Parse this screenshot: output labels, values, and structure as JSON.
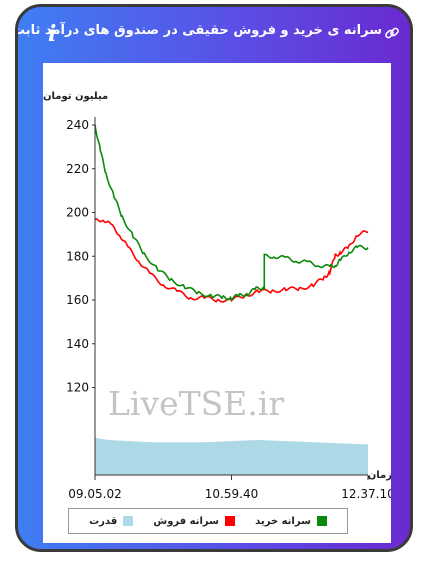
{
  "header": {
    "title": "سرانه ی خرید و فروش حقیقی در صندوق های درآمد ثابت",
    "link_icon": "link-icon",
    "info_icon_glyph": "i"
  },
  "watermark": "LiveTSE.ir",
  "colors": {
    "buy": "#0a8a0a",
    "sell": "#ff0000",
    "power": "#add8e6"
  },
  "chart_data": {
    "type": "line",
    "ylabel": "میلیون تومان",
    "xlabel": "زمان",
    "ylim": [
      80,
      240
    ],
    "y_ticks": [
      120,
      140,
      160,
      180,
      200,
      220,
      240
    ],
    "x_ticks": [
      "09.05.02",
      "10.59.40",
      "12.37.10"
    ],
    "x_tick_positions": [
      0,
      0.5,
      1.0
    ],
    "series": [
      {
        "name": "سرانه خرید",
        "color": "#0a8a0a",
        "x": [
          0,
          0.02,
          0.04,
          0.07,
          0.1,
          0.14,
          0.18,
          0.23,
          0.28,
          0.33,
          0.38,
          0.43,
          0.47,
          0.5,
          0.53,
          0.56,
          0.59,
          0.62,
          0.62,
          0.66,
          0.7,
          0.74,
          0.78,
          0.82,
          0.86,
          0.88,
          0.9,
          0.93,
          0.96,
          1.0
        ],
        "values": [
          240,
          228,
          218,
          207,
          198,
          189,
          181,
          174,
          169,
          166,
          163,
          162,
          161,
          161,
          162,
          163,
          165,
          166,
          180,
          180,
          179,
          178,
          177,
          176,
          175,
          176,
          178,
          182,
          184,
          184
        ]
      },
      {
        "name": "سرانه فروش",
        "color": "#ff0000",
        "x": [
          0,
          0.03,
          0.06,
          0.09,
          0.12,
          0.16,
          0.2,
          0.25,
          0.3,
          0.35,
          0.4,
          0.45,
          0.5,
          0.55,
          0.6,
          0.65,
          0.7,
          0.75,
          0.8,
          0.84,
          0.86,
          0.88,
          0.9,
          0.93,
          0.96,
          1.0
        ],
        "values": [
          196,
          197,
          194,
          190,
          184,
          178,
          172,
          167,
          164,
          161,
          161,
          160,
          160,
          162,
          164,
          164,
          165,
          165,
          167,
          170,
          173,
          180,
          182,
          184,
          190,
          191
        ]
      },
      {
        "name": "قدرت",
        "color": "#add8e6",
        "x": [
          0,
          0.05,
          0.2,
          0.4,
          0.6,
          0.8,
          1.0
        ],
        "values": [
          97,
          96,
          95,
          95,
          96,
          95,
          94
        ]
      }
    ]
  },
  "legend": [
    {
      "label": "سرانه خرید",
      "color": "#0a8a0a"
    },
    {
      "label": "سرانه فروش",
      "color": "#ff0000"
    },
    {
      "label": "قدرت",
      "color": "#add8e6"
    }
  ]
}
